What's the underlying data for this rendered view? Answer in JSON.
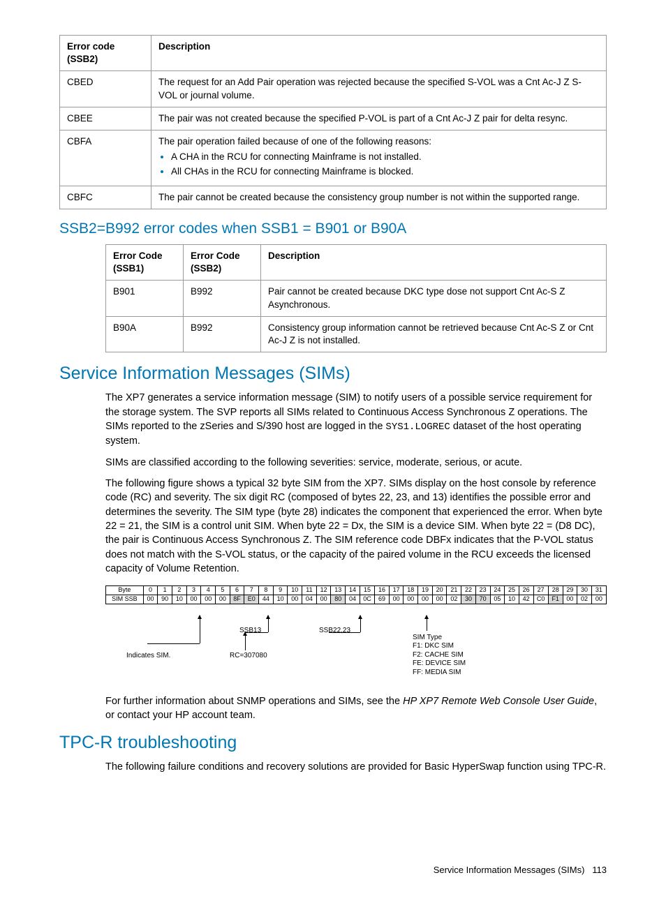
{
  "table1": {
    "headers": [
      "Error code (SSB2)",
      "Description"
    ],
    "rows": [
      {
        "code": "CBED",
        "desc": "The request for an Add Pair operation was rejected because the specified S-VOL was a Cnt Ac-J Z S-VOL or journal volume."
      },
      {
        "code": "CBEE",
        "desc": "The pair was not created because the specified P-VOL is part of a Cnt Ac-J Z pair for delta resync."
      },
      {
        "code": "CBFA",
        "desc_intro": "The pair operation failed because of one of the following reasons:",
        "bullets": [
          "A CHA in the RCU for connecting Mainframe is not installed.",
          "All CHAs in the RCU for connecting Mainframe is blocked."
        ]
      },
      {
        "code": "CBFC",
        "desc": "The pair cannot be created because the consistency group number is not within the supported range."
      }
    ]
  },
  "heading_ssb2": "SSB2=B992 error codes when SSB1 = B901 or B90A",
  "table2": {
    "headers": [
      "Error Code (SSB1)",
      "Error Code (SSB2)",
      "Description"
    ],
    "rows": [
      {
        "c1": "B901",
        "c2": "B992",
        "desc": "Pair cannot be created because DKC type dose not support Cnt Ac-S Z Asynchronous."
      },
      {
        "c1": "B90A",
        "c2": "B992",
        "desc": "Consistency group information cannot be retrieved because Cnt Ac-S Z or Cnt Ac-J Z is not installed."
      }
    ]
  },
  "heading_sims": "Service Information Messages (SIMs)",
  "sim_p1a": "The XP7 generates a service information message (SIM) to notify users of a possible service requirement for the storage system. The SVP reports all SIMs related to Continuous Access Synchronous Z operations. The SIMs reported to the zSeries and S/390 host are logged in the ",
  "sim_p1_code": "SYS1.LOGREC",
  "sim_p1b": " dataset of the host operating system.",
  "sim_p2": "SIMs are classified according to the following severities: service, moderate, serious, or acute.",
  "sim_p3": "The following figure shows a typical 32 byte SIM from the XP7. SIMs display on the host console by reference code (RC) and severity. The six digit RC (composed of bytes 22, 23, and 13) identifies the possible error and determines the severity. The SIM type (byte 28) indicates the component that experienced the error. When byte 22 = 21, the SIM is a control unit SIM. When byte 22 = Dx, the SIM is a device SIM. When byte 22 = (D8 DC), the pair is Continuous Access Synchronous Z. The SIM reference code DBFx indicates that the P-VOL status does not match with the S-VOL status, or the capacity of the paired volume in the RCU exceeds the licensed capacity of Volume Retention.",
  "sim_figure": {
    "byte_header_label": "Byte",
    "bytes": [
      "0",
      "1",
      "2",
      "3",
      "4",
      "5",
      "6",
      "7",
      "8",
      "9",
      "10",
      "11",
      "12",
      "13",
      "14",
      "15",
      "16",
      "17",
      "18",
      "19",
      "20",
      "21",
      "22",
      "23",
      "24",
      "25",
      "26",
      "27",
      "28",
      "29",
      "30",
      "31"
    ],
    "row_label": "SIM SSB",
    "row_vals": [
      "00",
      "90",
      "10",
      "00",
      "00",
      "00",
      "8F",
      "E0",
      "44",
      "10",
      "00",
      "04",
      "00",
      "80",
      "04",
      "0C",
      "69",
      "00",
      "00",
      "00",
      "00",
      "02",
      "30",
      "70",
      "05",
      "10",
      "42",
      "C0",
      "F1",
      "00",
      "02",
      "00"
    ],
    "shaded_idx": [
      6,
      7,
      13,
      22,
      23,
      28
    ],
    "annot_indicates": "Indicates SIM.",
    "annot_ssb13": "SSB13",
    "annot_rc": "RC=307080",
    "annot_ssb2223": "SSB22,23",
    "annot_simtype_title": "SIM Type",
    "annot_simtype_lines": [
      "F1: DKC SIM",
      "F2: CACHE SIM",
      "FE: DEVICE SIM",
      "FF: MEDIA SIM"
    ]
  },
  "sim_p4a": "For further information about SNMP operations and SIMs, see the ",
  "sim_p4_em": "HP XP7 Remote Web Console User Guide",
  "sim_p4b": ", or contact your HP account team.",
  "heading_tpcr": "TPC-R troubleshooting",
  "tpcr_p1": "The following failure conditions and recovery solutions are provided for Basic HyperSwap function using TPC-R.",
  "footer_text": "Service Information Messages (SIMs)",
  "footer_page": "113"
}
